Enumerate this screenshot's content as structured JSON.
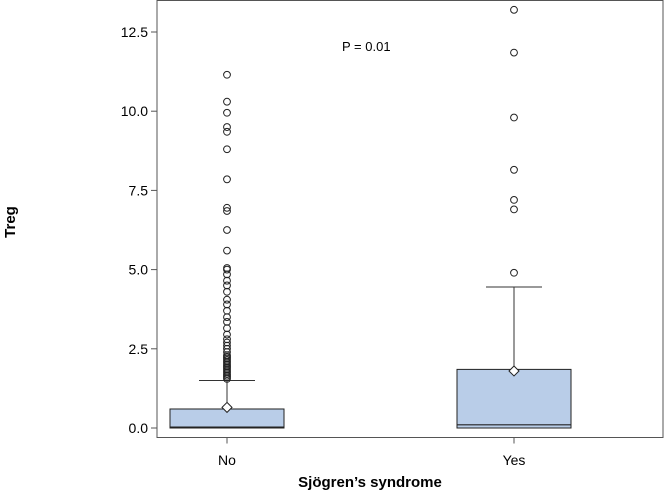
{
  "chart_data": {
    "type": "box",
    "xlabel": "Sjögren’s syndrome",
    "ylabel": "Treg",
    "annotation": "P = 0.01",
    "ylim": [
      -0.3,
      13.4
    ],
    "yticks": [
      0.0,
      2.5,
      5.0,
      7.5,
      10.0,
      12.5
    ],
    "ytick_labels": [
      "0.0",
      "2.5",
      "5.0",
      "7.5",
      "10.0",
      "12.5"
    ],
    "grid": false,
    "box_fill": "#b9cde8",
    "categories": [
      "No",
      "Yes"
    ],
    "groups": [
      {
        "category": "No",
        "q1": 0.0,
        "median": 0.03,
        "q3": 0.6,
        "mean": 0.65,
        "whisker_low": 0.0,
        "whisker_high": 1.5,
        "outliers": [
          1.55,
          1.6,
          1.65,
          1.7,
          1.75,
          1.8,
          1.85,
          1.9,
          1.95,
          2.0,
          2.05,
          2.1,
          2.15,
          2.2,
          2.25,
          2.3,
          2.4,
          2.5,
          2.6,
          2.7,
          2.8,
          2.95,
          3.15,
          3.35,
          3.5,
          3.7,
          3.9,
          4.05,
          4.3,
          4.5,
          4.65,
          4.85,
          5.0,
          5.05,
          5.6,
          6.25,
          6.85,
          6.95,
          7.85,
          8.8,
          9.35,
          9.5,
          9.95,
          10.3,
          11.15
        ]
      },
      {
        "category": "Yes",
        "q1": 0.0,
        "median": 0.1,
        "q3": 1.85,
        "mean": 1.8,
        "whisker_low": 0.0,
        "whisker_high": 4.45,
        "outliers": [
          4.9,
          6.9,
          7.2,
          8.15,
          9.8,
          11.85,
          13.2
        ]
      }
    ]
  }
}
